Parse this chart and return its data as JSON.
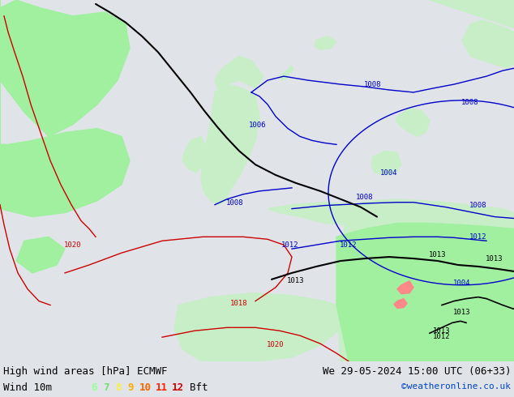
{
  "title_left": "High wind areas [hPa] ECMWF",
  "title_right": "We 29-05-2024 15:00 UTC (06+33)",
  "subtitle_left": "Wind 10m",
  "wind_labels": [
    "6",
    "7",
    "8",
    "9",
    "10",
    "11",
    "12",
    "Bft"
  ],
  "wind_colors": [
    "#99ff99",
    "#77dd77",
    "#ffee44",
    "#ffaa00",
    "#ff6600",
    "#ff2200",
    "#cc0000",
    "#000000"
  ],
  "credit": "©weatheronline.co.uk",
  "sea_color": "#e0e4e8",
  "land_color": "#c8eec8",
  "hi_wind_color": "#a0f0a0",
  "contour_blue": "#0000cc",
  "contour_red": "#cc0000",
  "contour_black": "#000000",
  "bar_bg": "#ffffff"
}
